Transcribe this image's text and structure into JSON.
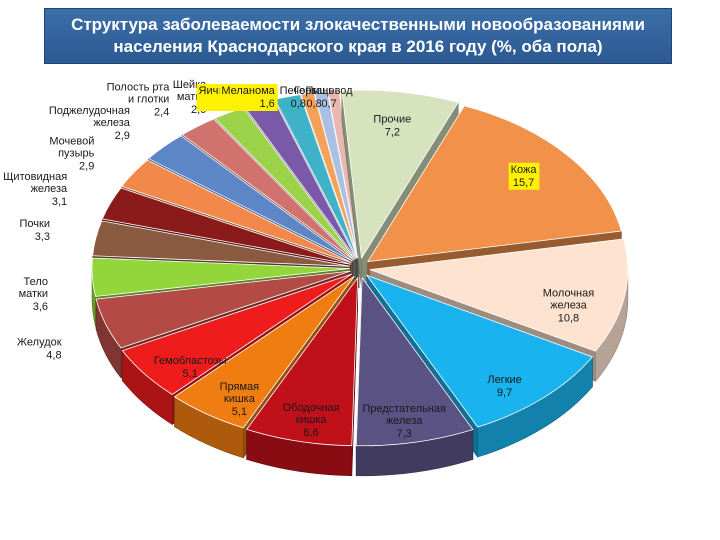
{
  "title": "Структура заболеваемости злокачественными новообразованиями населения  Краснодарского края в 2016 году (%, оба пола)",
  "chart_data": {
    "type": "pie",
    "exploded": true,
    "style": "3d",
    "unit": "%",
    "slices": [
      {
        "label": "Кожа",
        "value": 15.7,
        "value_text": "15,7",
        "color": "#f2924a",
        "highlight": "#fff200"
      },
      {
        "label": "Молочная железа",
        "value": 10.8,
        "value_text": "10,8",
        "color": "#fde3d0"
      },
      {
        "label": "Легкие",
        "value": 9.7,
        "value_text": "9,7",
        "color": "#19b3ef"
      },
      {
        "label": "Предстательная железа",
        "value": 7.3,
        "value_text": "7,3",
        "color": "#5a5384"
      },
      {
        "label": "Ободочная кишка",
        "value": 6.6,
        "value_text": "6,6",
        "color": "#c0101a"
      },
      {
        "label": "Прямая кишка",
        "value": 5.1,
        "value_text": "5,1",
        "color": "#f07d12"
      },
      {
        "label": "Гемобластозы",
        "value": 5.1,
        "value_text": "5,1",
        "color": "#ee1c1c"
      },
      {
        "label": "Желудок",
        "value": 4.8,
        "value_text": "4,8",
        "color": "#b34a45"
      },
      {
        "label": "Тело матки",
        "value": 3.6,
        "value_text": "3,6",
        "color": "#92d63c"
      },
      {
        "label": "Почки",
        "value": 3.3,
        "value_text": "3,3",
        "color": "#8a5a40"
      },
      {
        "label": "Щитовидная железа",
        "value": 3.1,
        "value_text": "3,1",
        "color": "#8b1a1a"
      },
      {
        "label": "Мочевой пузырь",
        "value": 2.9,
        "value_text": "2,9",
        "color": "#f2884a"
      },
      {
        "label": "Поджелудочная железа",
        "value": 2.9,
        "value_text": "2,9",
        "color": "#5d86c6"
      },
      {
        "label": "Полость рта и глотки",
        "value": 2.4,
        "value_text": "2,4",
        "color": "#d0726e"
      },
      {
        "label": "Шейка матки",
        "value": 2.0,
        "value_text": "2,0",
        "color": "#9bd24a"
      },
      {
        "label": "Яичники",
        "value": 1.9,
        "value_text": "1,9",
        "color": "#7a5aa8",
        "highlight": "#fff200"
      },
      {
        "label": "Меланома",
        "value": 1.6,
        "value_text": "1,6",
        "color": "#3fb2c8",
        "highlight": "#fff200"
      },
      {
        "label": "Печень",
        "value": 0.8,
        "value_text": "0,8",
        "color": "#f4a25a"
      },
      {
        "label": "Гортань",
        "value": 0.8,
        "value_text": "0,8",
        "color": "#a9c0e2"
      },
      {
        "label": "Пищевод",
        "value": 0.7,
        "value_text": "0,7",
        "color": "#e8b8b0"
      },
      {
        "label": "Прочие",
        "value": 7.2,
        "value_text": "7,2",
        "color": "#d7e3bf"
      }
    ]
  }
}
